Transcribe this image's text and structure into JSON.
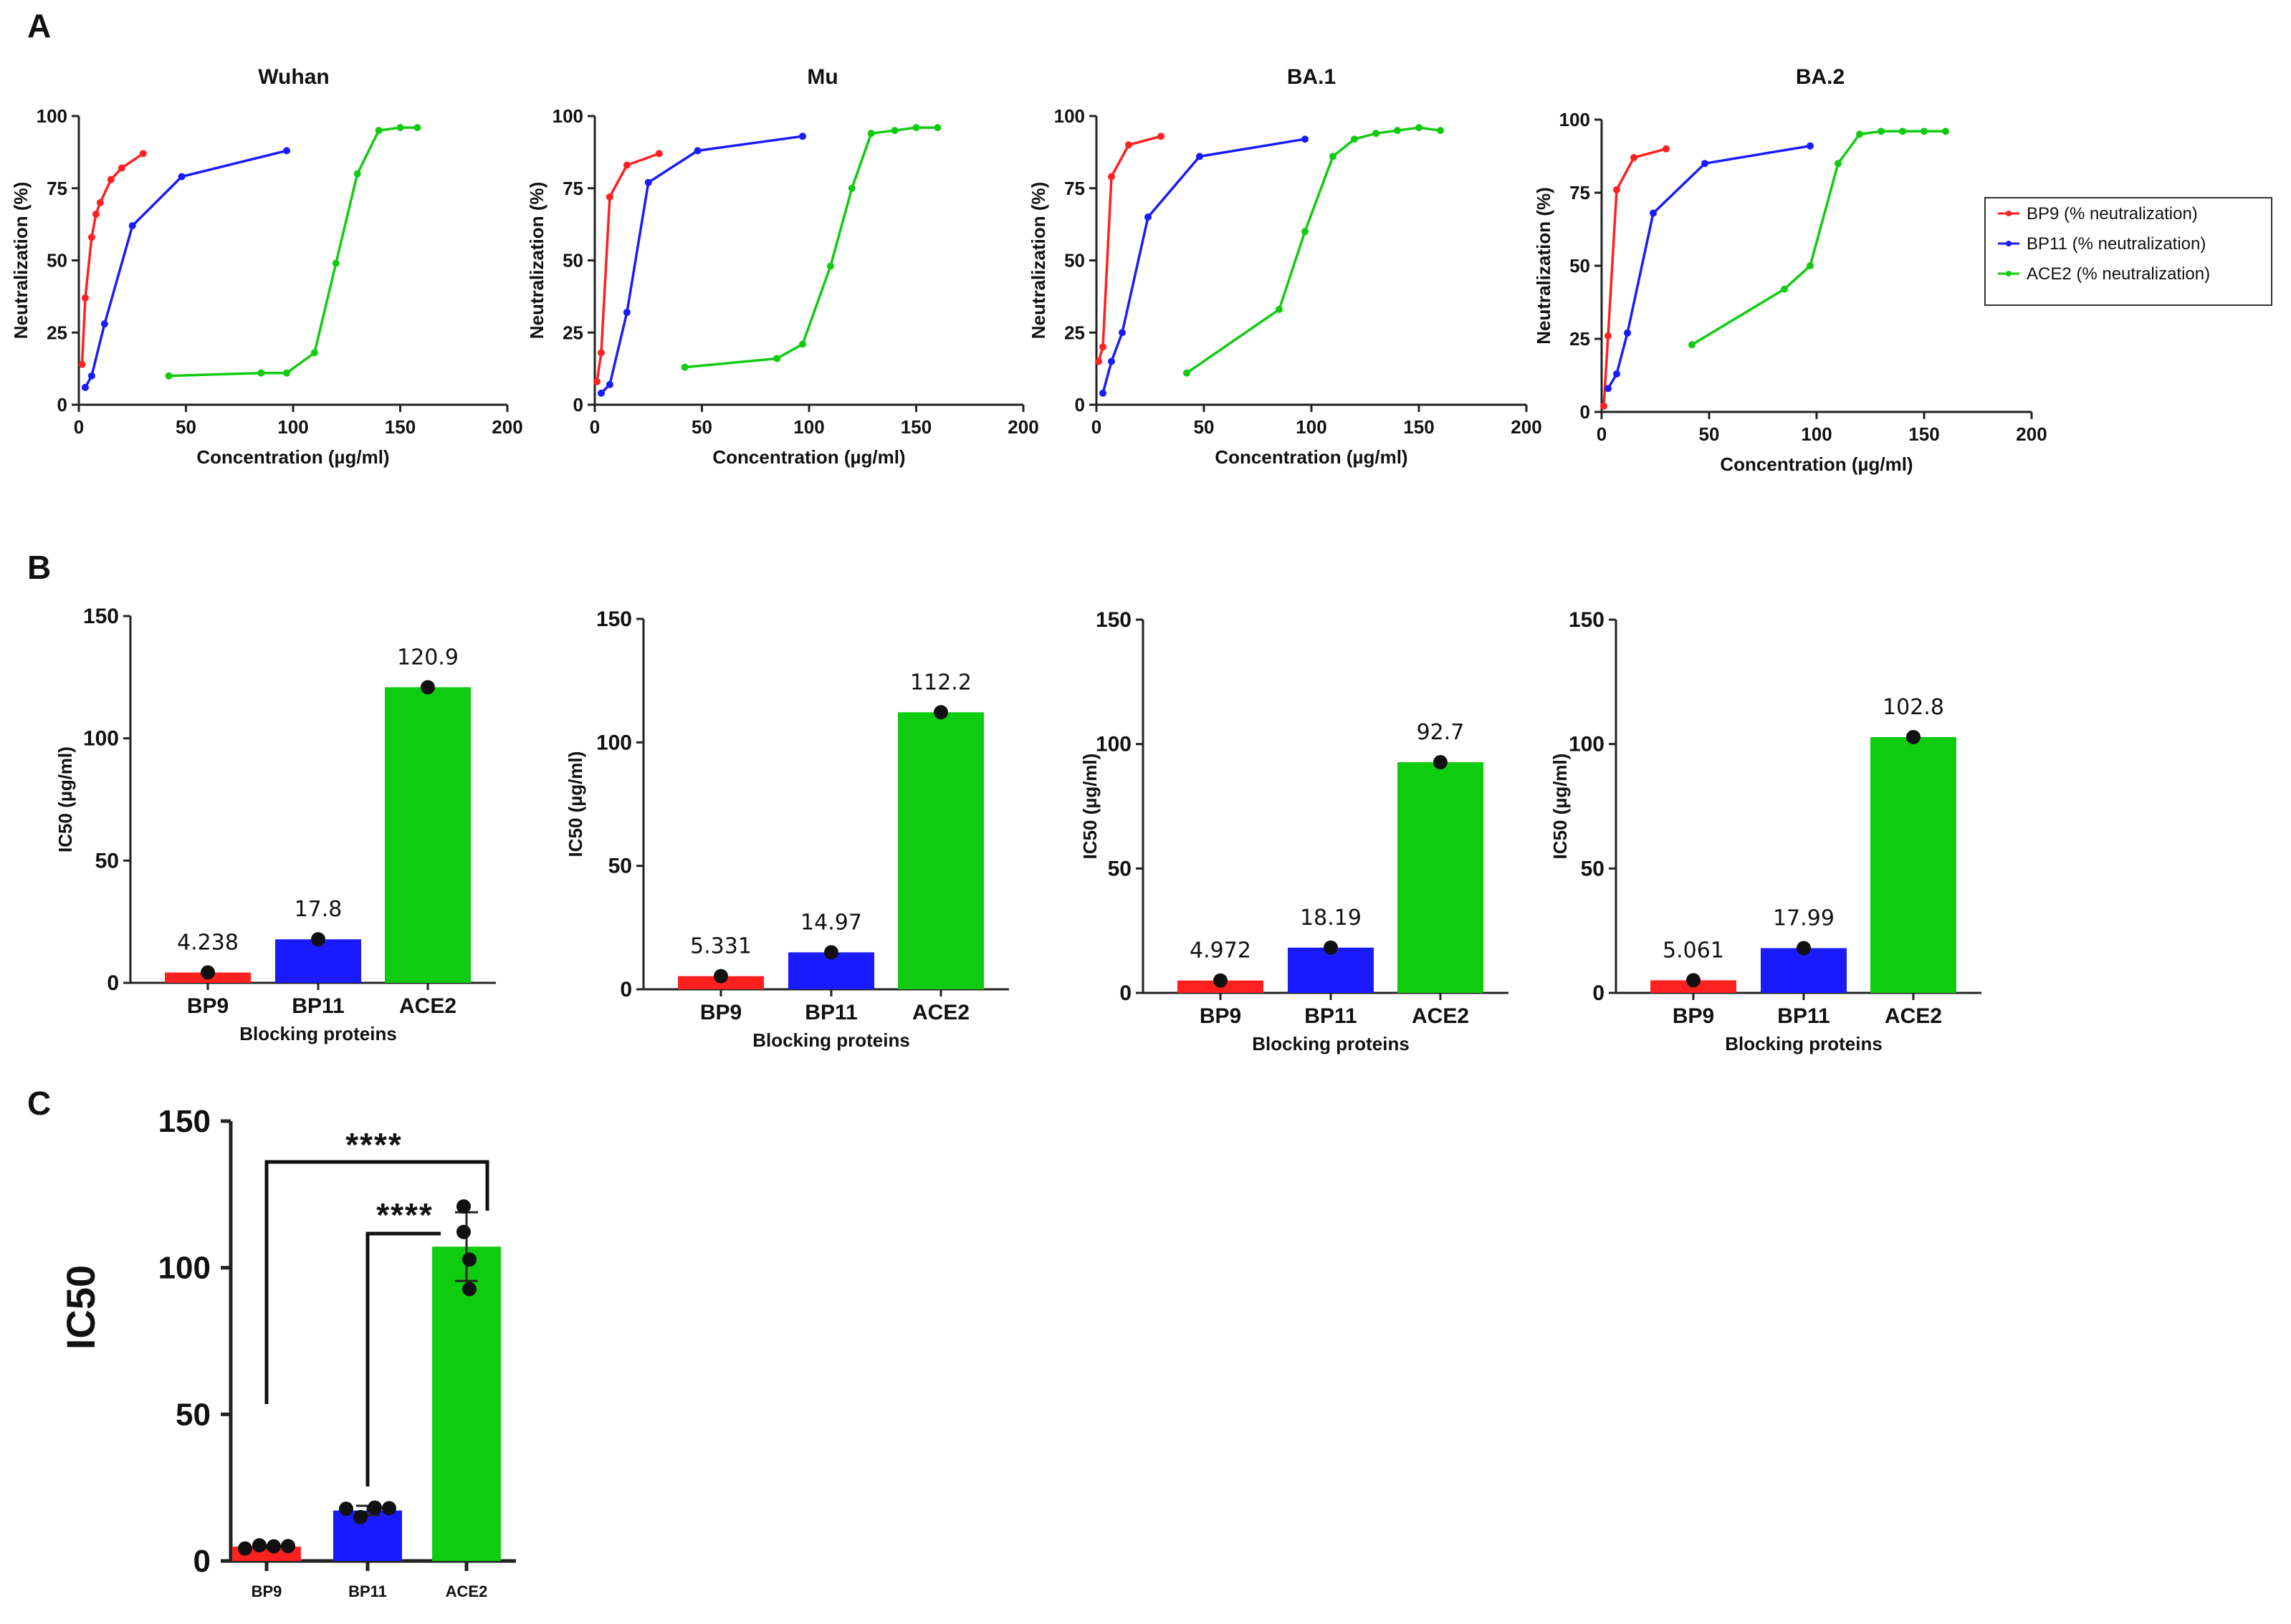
{
  "panels": {
    "a": "A",
    "b": "B",
    "c": "C"
  },
  "colors": {
    "BP9": "#ff2020",
    "BP11": "#1a1aff",
    "ACE2": "#10cc10"
  },
  "legend": {
    "BP9": "BP9 (% neutralization)",
    "BP11": "BP11 (% neutralization)",
    "ACE2": "ACE2 (% neutralization)"
  },
  "chart_data": [
    {
      "panel": "A",
      "type": "line",
      "title": "Wuhan",
      "xlabel": "Concentration (µg/ml)",
      "ylabel": "Neutralization (%)",
      "xlim": [
        0,
        200
      ],
      "ylim": [
        0,
        100
      ],
      "xticks": [
        "0",
        "50",
        "100",
        "150",
        "200"
      ],
      "yticks": [
        "0",
        "25",
        "50",
        "75",
        "100"
      ],
      "series": [
        {
          "name": "BP9",
          "x": [
            1.5,
            3,
            6,
            8,
            10,
            15,
            20,
            30
          ],
          "y": [
            14,
            37,
            58,
            66,
            70,
            78,
            82,
            87
          ]
        },
        {
          "name": "BP11",
          "x": [
            3,
            6,
            12,
            25,
            48,
            97
          ],
          "y": [
            6,
            10,
            28,
            62,
            79,
            88
          ]
        },
        {
          "name": "ACE2",
          "x": [
            42,
            85,
            97,
            110,
            120,
            130,
            140,
            150,
            158
          ],
          "y": [
            10,
            11,
            11,
            18,
            49,
            80,
            95,
            96,
            96
          ]
        }
      ]
    },
    {
      "panel": "A",
      "type": "line",
      "title": "Mu",
      "xlabel": "Concentration (µg/ml)",
      "ylabel": "Neutralization (%)",
      "xlim": [
        0,
        200
      ],
      "ylim": [
        0,
        100
      ],
      "xticks": [
        "0",
        "50",
        "100",
        "150",
        "200"
      ],
      "yticks": [
        "0",
        "25",
        "50",
        "75",
        "100"
      ],
      "series": [
        {
          "name": "BP9",
          "x": [
            1,
            3,
            7,
            15,
            30
          ],
          "y": [
            8,
            18,
            72,
            83,
            87
          ]
        },
        {
          "name": "BP11",
          "x": [
            3,
            7,
            15,
            25,
            48,
            97
          ],
          "y": [
            4,
            7,
            32,
            77,
            88,
            93
          ]
        },
        {
          "name": "ACE2",
          "x": [
            42,
            85,
            97,
            110,
            120,
            129,
            140,
            150,
            160
          ],
          "y": [
            13,
            16,
            21,
            48,
            75,
            94,
            95,
            96,
            96
          ]
        }
      ]
    },
    {
      "panel": "A",
      "type": "line",
      "title": "BA.1",
      "xlabel": "Concentration (µg/ml)",
      "ylabel": "Neutralization (%)",
      "xlim": [
        0,
        200
      ],
      "ylim": [
        0,
        100
      ],
      "xticks": [
        "0",
        "50",
        "100",
        "150",
        "200"
      ],
      "yticks": [
        "0",
        "25",
        "50",
        "75",
        "100"
      ],
      "series": [
        {
          "name": "BP9",
          "x": [
            1,
            3,
            7,
            15,
            30
          ],
          "y": [
            15,
            20,
            79,
            90,
            93
          ]
        },
        {
          "name": "BP11",
          "x": [
            3,
            7,
            12,
            24,
            48,
            97
          ],
          "y": [
            4,
            15,
            25,
            65,
            86,
            92
          ]
        },
        {
          "name": "ACE2",
          "x": [
            42,
            85,
            97,
            110,
            120,
            130,
            140,
            150,
            160
          ],
          "y": [
            11,
            33,
            60,
            86,
            92,
            94,
            95,
            96,
            95
          ]
        }
      ]
    },
    {
      "panel": "A",
      "type": "line",
      "title": "BA.2",
      "xlabel": "Concentration (µg/ml)",
      "ylabel": "Neutralization (%)",
      "xlim": [
        0,
        200
      ],
      "ylim": [
        0,
        100
      ],
      "xticks": [
        "0",
        "50",
        "100",
        "150",
        "200"
      ],
      "yticks": [
        "0",
        "25",
        "50",
        "75",
        "100"
      ],
      "series": [
        {
          "name": "BP9",
          "x": [
            1,
            3,
            7,
            15,
            30
          ],
          "y": [
            2,
            26,
            76,
            87,
            90
          ]
        },
        {
          "name": "BP11",
          "x": [
            3,
            7,
            12,
            24,
            48,
            97
          ],
          "y": [
            8,
            13,
            27,
            68,
            85,
            91
          ]
        },
        {
          "name": "ACE2",
          "x": [
            42,
            85,
            97,
            110,
            120,
            130,
            140,
            150,
            160
          ],
          "y": [
            23,
            42,
            50,
            85,
            95,
            96,
            96,
            96,
            96
          ]
        }
      ]
    },
    {
      "panel": "B",
      "type": "bar",
      "xlabel": "Blocking proteins",
      "ylabel": "IC50 (µg/ml)",
      "ylim": [
        0,
        150
      ],
      "yticks": [
        "0",
        "50",
        "100",
        "150"
      ],
      "categories": [
        "BP9",
        "BP11",
        "ACE2"
      ],
      "values": [
        4.238,
        17.8,
        120.9
      ],
      "labels": [
        "4.238",
        "17.8",
        "120.9"
      ]
    },
    {
      "panel": "B",
      "type": "bar",
      "xlabel": "Blocking proteins",
      "ylabel": "IC50 (µg/ml)",
      "ylim": [
        0,
        150
      ],
      "yticks": [
        "0",
        "50",
        "100",
        "150"
      ],
      "categories": [
        "BP9",
        "BP11",
        "ACE2"
      ],
      "values": [
        5.331,
        14.97,
        112.2
      ],
      "labels": [
        "5.331",
        "14.97",
        "112.2"
      ]
    },
    {
      "panel": "B",
      "type": "bar",
      "xlabel": "Blocking proteins",
      "ylabel": "IC50 (µg/ml)",
      "ylim": [
        0,
        150
      ],
      "yticks": [
        "0",
        "50",
        "100",
        "150"
      ],
      "categories": [
        "BP9",
        "BP11",
        "ACE2"
      ],
      "values": [
        4.972,
        18.19,
        92.7
      ],
      "labels": [
        "4.972",
        "18.19",
        "92.7"
      ]
    },
    {
      "panel": "B",
      "type": "bar",
      "xlabel": "Blocking proteins",
      "ylabel": "IC50 (µg/ml)",
      "ylim": [
        0,
        150
      ],
      "yticks": [
        "0",
        "50",
        "100",
        "150"
      ],
      "categories": [
        "BP9",
        "BP11",
        "ACE2"
      ],
      "values": [
        5.061,
        17.99,
        102.8
      ],
      "labels": [
        "5.061",
        "17.99",
        "102.8"
      ]
    },
    {
      "panel": "C",
      "type": "bar",
      "ylabel": "IC50",
      "ylim": [
        0,
        150
      ],
      "yticks": [
        "0",
        "50",
        "100",
        "150"
      ],
      "categories": [
        "BP9",
        "BP11",
        "ACE2"
      ],
      "values": [
        4.9,
        17.2,
        107.2
      ],
      "error": [
        0.5,
        1.6,
        11.7
      ],
      "points": [
        [
          4.24,
          5.33,
          4.97,
          5.06
        ],
        [
          17.8,
          14.97,
          18.19,
          17.99
        ],
        [
          120.9,
          112.2,
          92.7,
          102.8
        ]
      ],
      "significance": [
        "****",
        "****"
      ]
    }
  ]
}
